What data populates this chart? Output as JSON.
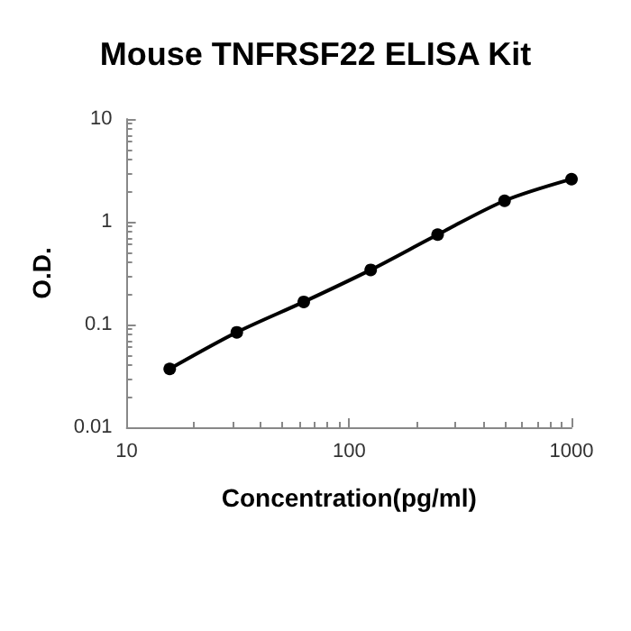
{
  "chart_data": {
    "type": "line",
    "title": "Mouse TNFRSF22 ELISA Kit",
    "xlabel": "Concentration(pg/ml)",
    "ylabel": "O.D.",
    "x": [
      15.6,
      31.25,
      62.5,
      125,
      250,
      500,
      1000
    ],
    "series": [
      {
        "color": "#000000",
        "values": [
          0.037,
          0.084,
          0.166,
          0.34,
          0.75,
          1.6,
          2.6
        ]
      }
    ],
    "log": "xy",
    "xlim": [
      10,
      1000
    ],
    "xticks": [
      10,
      100,
      1000
    ],
    "ylim": [
      0.01,
      10
    ],
    "yticks": [
      0.01,
      0.1,
      1,
      10
    ],
    "grid": false,
    "marker": "circle",
    "line_style": "solid"
  }
}
